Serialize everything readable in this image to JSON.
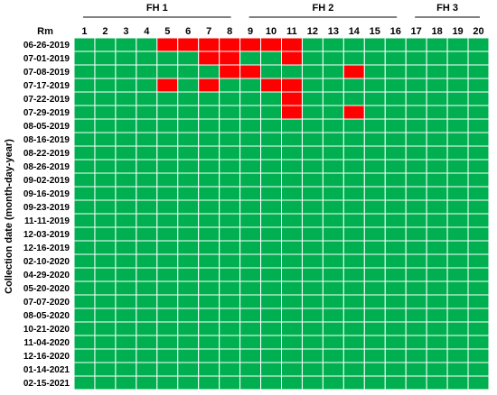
{
  "chart_data": {
    "type": "heatmap",
    "title": "",
    "xlabel": "Rm",
    "ylabel": "Collection date (month-day-year)",
    "groups": [
      {
        "label": "FH 1",
        "columns": [
          1,
          2,
          3,
          4,
          5,
          6,
          7,
          8
        ]
      },
      {
        "label": "FH 2",
        "columns": [
          9,
          10,
          11,
          12,
          13,
          14,
          15,
          16
        ]
      },
      {
        "label": "FH 3",
        "columns": [
          17,
          18,
          19,
          20
        ]
      }
    ],
    "columns": [
      "1",
      "2",
      "3",
      "4",
      "5",
      "6",
      "7",
      "8",
      "9",
      "10",
      "11",
      "12",
      "13",
      "14",
      "15",
      "16",
      "17",
      "18",
      "19",
      "20"
    ],
    "rows": [
      "06-26-2019",
      "07-01-2019",
      "07-08-2019",
      "07-17-2019",
      "07-22-2019",
      "07-29-2019",
      "08-05-2019",
      "08-16-2019",
      "08-22-2019",
      "08-26-2019",
      "09-02-2019",
      "09-16-2019",
      "09-23-2019",
      "11-11-2019",
      "12-03-2019",
      "12-16-2019",
      "02-10-2020",
      "04-29-2020",
      "05-20-2020",
      "07-07-2020",
      "08-05-2020",
      "10-21-2020",
      "11-04-2020",
      "12-16-2020",
      "01-14-2021",
      "02-15-2021"
    ],
    "values": [
      [
        0,
        0,
        0,
        0,
        1,
        1,
        1,
        1,
        1,
        1,
        1,
        0,
        0,
        0,
        0,
        0,
        0,
        0,
        0,
        0
      ],
      [
        0,
        0,
        0,
        0,
        0,
        0,
        1,
        1,
        0,
        0,
        1,
        0,
        0,
        0,
        0,
        0,
        0,
        0,
        0,
        0
      ],
      [
        0,
        0,
        0,
        0,
        0,
        0,
        0,
        1,
        1,
        0,
        0,
        0,
        0,
        1,
        0,
        0,
        0,
        0,
        0,
        0
      ],
      [
        0,
        0,
        0,
        0,
        1,
        0,
        1,
        0,
        0,
        1,
        1,
        0,
        0,
        0,
        0,
        0,
        0,
        0,
        0,
        0
      ],
      [
        0,
        0,
        0,
        0,
        0,
        0,
        0,
        0,
        0,
        0,
        1,
        0,
        0,
        0,
        0,
        0,
        0,
        0,
        0,
        0
      ],
      [
        0,
        0,
        0,
        0,
        0,
        0,
        0,
        0,
        0,
        0,
        1,
        0,
        0,
        1,
        0,
        0,
        0,
        0,
        0,
        0
      ],
      [
        0,
        0,
        0,
        0,
        0,
        0,
        0,
        0,
        0,
        0,
        0,
        0,
        0,
        0,
        0,
        0,
        0,
        0,
        0,
        0
      ],
      [
        0,
        0,
        0,
        0,
        0,
        0,
        0,
        0,
        0,
        0,
        0,
        0,
        0,
        0,
        0,
        0,
        0,
        0,
        0,
        0
      ],
      [
        0,
        0,
        0,
        0,
        0,
        0,
        0,
        0,
        0,
        0,
        0,
        0,
        0,
        0,
        0,
        0,
        0,
        0,
        0,
        0
      ],
      [
        0,
        0,
        0,
        0,
        0,
        0,
        0,
        0,
        0,
        0,
        0,
        0,
        0,
        0,
        0,
        0,
        0,
        0,
        0,
        0
      ],
      [
        0,
        0,
        0,
        0,
        0,
        0,
        0,
        0,
        0,
        0,
        0,
        0,
        0,
        0,
        0,
        0,
        0,
        0,
        0,
        0
      ],
      [
        0,
        0,
        0,
        0,
        0,
        0,
        0,
        0,
        0,
        0,
        0,
        0,
        0,
        0,
        0,
        0,
        0,
        0,
        0,
        0
      ],
      [
        0,
        0,
        0,
        0,
        0,
        0,
        0,
        0,
        0,
        0,
        0,
        0,
        0,
        0,
        0,
        0,
        0,
        0,
        0,
        0
      ],
      [
        0,
        0,
        0,
        0,
        0,
        0,
        0,
        0,
        0,
        0,
        0,
        0,
        0,
        0,
        0,
        0,
        0,
        0,
        0,
        0
      ],
      [
        0,
        0,
        0,
        0,
        0,
        0,
        0,
        0,
        0,
        0,
        0,
        0,
        0,
        0,
        0,
        0,
        0,
        0,
        0,
        0
      ],
      [
        0,
        0,
        0,
        0,
        0,
        0,
        0,
        0,
        0,
        0,
        0,
        0,
        0,
        0,
        0,
        0,
        0,
        0,
        0,
        0
      ],
      [
        0,
        0,
        0,
        0,
        0,
        0,
        0,
        0,
        0,
        0,
        0,
        0,
        0,
        0,
        0,
        0,
        0,
        0,
        0,
        0
      ],
      [
        0,
        0,
        0,
        0,
        0,
        0,
        0,
        0,
        0,
        0,
        0,
        0,
        0,
        0,
        0,
        0,
        0,
        0,
        0,
        0
      ],
      [
        0,
        0,
        0,
        0,
        0,
        0,
        0,
        0,
        0,
        0,
        0,
        0,
        0,
        0,
        0,
        0,
        0,
        0,
        0,
        0
      ],
      [
        0,
        0,
        0,
        0,
        0,
        0,
        0,
        0,
        0,
        0,
        0,
        0,
        0,
        0,
        0,
        0,
        0,
        0,
        0,
        0
      ],
      [
        0,
        0,
        0,
        0,
        0,
        0,
        0,
        0,
        0,
        0,
        0,
        0,
        0,
        0,
        0,
        0,
        0,
        0,
        0,
        0
      ],
      [
        0,
        0,
        0,
        0,
        0,
        0,
        0,
        0,
        0,
        0,
        0,
        0,
        0,
        0,
        0,
        0,
        0,
        0,
        0,
        0
      ],
      [
        0,
        0,
        0,
        0,
        0,
        0,
        0,
        0,
        0,
        0,
        0,
        0,
        0,
        0,
        0,
        0,
        0,
        0,
        0,
        0
      ],
      [
        0,
        0,
        0,
        0,
        0,
        0,
        0,
        0,
        0,
        0,
        0,
        0,
        0,
        0,
        0,
        0,
        0,
        0,
        0,
        0
      ],
      [
        0,
        0,
        0,
        0,
        0,
        0,
        0,
        0,
        0,
        0,
        0,
        0,
        0,
        0,
        0,
        0,
        0,
        0,
        0,
        0
      ],
      [
        0,
        0,
        0,
        0,
        0,
        0,
        0,
        0,
        0,
        0,
        0,
        0,
        0,
        0,
        0,
        0,
        0,
        0,
        0,
        0
      ]
    ],
    "colors": {
      "0": "#00b050",
      "1": "#ff0000",
      "grid": "#ffffff"
    },
    "grid": true,
    "legend": "none"
  }
}
